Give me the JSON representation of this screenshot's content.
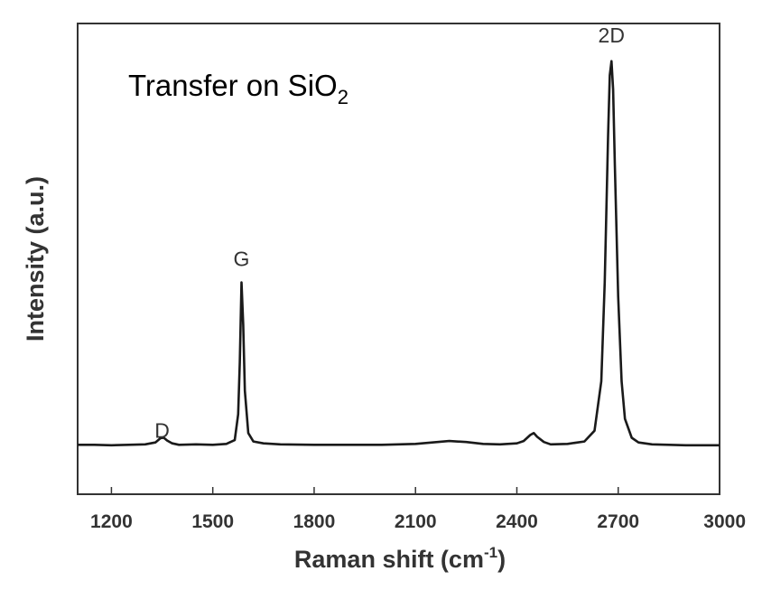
{
  "chart_data": {
    "type": "line",
    "xlabel": "Raman shift (cm-1)",
    "xlabel_main": "Raman shift (cm",
    "xlabel_sup": "-1",
    "xlabel_end": ")",
    "ylabel": "Intensity (a.u.)",
    "xlim": [
      1100,
      3000
    ],
    "ylim": [
      0,
      1
    ],
    "x_ticks": [
      1200,
      1500,
      1800,
      2100,
      2400,
      2700,
      3000
    ],
    "x_tick_labels": [
      "1200",
      "1500",
      "1800",
      "2100",
      "2400",
      "2700",
      "3000"
    ],
    "y_ticks_shown": false,
    "grid": false,
    "annotation": "Transfer on SiO2",
    "annotation_main": "Transfer on SiO",
    "annotation_sub": "2",
    "peak_labels": [
      {
        "text": "D",
        "x": 1350,
        "y": 0.135
      },
      {
        "text": "G",
        "x": 1585,
        "y": 0.5
      },
      {
        "text": "2D",
        "x": 2680,
        "y": 0.975
      }
    ],
    "series": [
      {
        "x": [
          1100,
          1150,
          1200,
          1250,
          1300,
          1330,
          1345,
          1355,
          1365,
          1380,
          1400,
          1450,
          1500,
          1540,
          1565,
          1575,
          1580,
          1585,
          1590,
          1595,
          1605,
          1620,
          1650,
          1700,
          1800,
          1900,
          2000,
          2050,
          2100,
          2150,
          2200,
          2250,
          2300,
          2350,
          2400,
          2420,
          2440,
          2450,
          2460,
          2480,
          2500,
          2550,
          2600,
          2630,
          2650,
          2660,
          2670,
          2675,
          2680,
          2685,
          2690,
          2700,
          2710,
          2720,
          2740,
          2760,
          2800,
          2900,
          3000
        ],
        "y": [
          0.105,
          0.105,
          0.104,
          0.105,
          0.106,
          0.11,
          0.119,
          0.12,
          0.114,
          0.108,
          0.105,
          0.106,
          0.105,
          0.107,
          0.115,
          0.17,
          0.28,
          0.45,
          0.36,
          0.22,
          0.13,
          0.112,
          0.108,
          0.106,
          0.105,
          0.105,
          0.105,
          0.106,
          0.107,
          0.11,
          0.113,
          0.111,
          0.107,
          0.106,
          0.108,
          0.113,
          0.126,
          0.13,
          0.122,
          0.111,
          0.106,
          0.107,
          0.112,
          0.135,
          0.24,
          0.45,
          0.76,
          0.89,
          0.92,
          0.86,
          0.7,
          0.42,
          0.24,
          0.16,
          0.12,
          0.11,
          0.106,
          0.104,
          0.104
        ]
      }
    ]
  },
  "colors": {
    "line": "#1a1a1a",
    "axis": "#333333",
    "text": "#333333",
    "background": "#ffffff"
  }
}
